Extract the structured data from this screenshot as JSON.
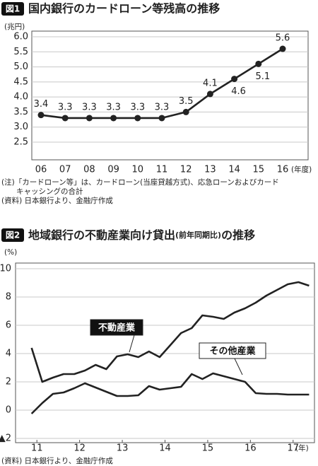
{
  "chart_data": [
    {
      "type": "line",
      "badge": "図1",
      "title": "国内銀行のカードローン等残高の推移",
      "y_unit": "(兆円)",
      "x_unit": "(年度)",
      "categories": [
        "06",
        "07",
        "08",
        "09",
        "10",
        "11",
        "12",
        "13",
        "14",
        "15",
        "16"
      ],
      "series": [
        {
          "name": null,
          "color": "#222222",
          "values": [
            3.4,
            3.3,
            3.3,
            3.3,
            3.3,
            3.3,
            3.5,
            4.1,
            4.6,
            5.1,
            5.6
          ]
        }
      ],
      "ylim": [
        2.5,
        6.0
      ],
      "yticks": [
        {
          "value": 2.5,
          "label": "2.5"
        },
        {
          "value": 3,
          "label": "3.0"
        },
        {
          "value": 3.5,
          "label": "3.5"
        },
        {
          "value": 4,
          "label": "4.0"
        },
        {
          "value": 4.5,
          "label": "4.5"
        },
        {
          "value": 5,
          "label": "5.0"
        },
        {
          "value": 5.5,
          "label": "5.5"
        },
        {
          "value": 6,
          "label": "6.0"
        }
      ],
      "grid": true,
      "markers": true,
      "data_labels": true,
      "notes": [
        "(注)「カードローン等」は、カードローン(当座貸越方式)、応急ローンおよびカード",
        "　　キャッシングの合計",
        "(資料) 日本銀行より、金融庁作成"
      ]
    },
    {
      "type": "line",
      "badge": "図2",
      "title": "地域銀行の不動産業向け貸出",
      "title_note": "(前年同期比)",
      "title_suffix": "の推移",
      "y_unit": "(%)",
      "x_unit": "(年)",
      "x": [
        11.375,
        11.625,
        11.875,
        12.125,
        12.375,
        12.625,
        12.875,
        13.125,
        13.375,
        13.625,
        13.875,
        14.125,
        14.375,
        14.625,
        14.875,
        15.125,
        15.375,
        15.625,
        15.875,
        16.125,
        16.375,
        16.625,
        16.875,
        17.125,
        17.375,
        17.625,
        17.875
      ],
      "series": [
        {
          "name": "不動産業",
          "color": "#222222",
          "values": [
            4.4,
            2.0,
            2.3,
            2.55,
            2.55,
            2.8,
            3.2,
            2.9,
            3.8,
            3.95,
            3.75,
            4.15,
            3.75,
            4.6,
            5.45,
            5.8,
            6.7,
            6.6,
            6.45,
            6.9,
            7.2,
            7.6,
            8.1,
            8.5,
            8.9,
            9.05,
            8.8
          ]
        },
        {
          "name": "その他産業",
          "color": "#222222",
          "values": [
            -0.25,
            0.5,
            1.15,
            1.25,
            1.55,
            1.9,
            1.6,
            1.3,
            1.0,
            1.0,
            1.05,
            1.7,
            1.45,
            1.55,
            1.65,
            2.55,
            2.2,
            2.6,
            2.4,
            2.2,
            2.0,
            1.2,
            1.15,
            1.15,
            1.1,
            1.1,
            1.1
          ]
        }
      ],
      "xlim": [
        11,
        18
      ],
      "xticks": [
        {
          "value": 11.5,
          "label": "11"
        },
        {
          "value": 12.5,
          "label": "12"
        },
        {
          "value": 13.5,
          "label": "13"
        },
        {
          "value": 14.5,
          "label": "14"
        },
        {
          "value": 15.5,
          "label": "15"
        },
        {
          "value": 16.5,
          "label": "16"
        },
        {
          "value": 17.5,
          "label": "17"
        }
      ],
      "ylim": [
        -2,
        10
      ],
      "yticks": [
        {
          "value": -2,
          "label": "▲2"
        },
        0,
        2,
        4,
        6,
        8,
        10
      ],
      "grid": true,
      "notes": [
        "(資料) 日本銀行より、金融庁作成"
      ]
    }
  ]
}
